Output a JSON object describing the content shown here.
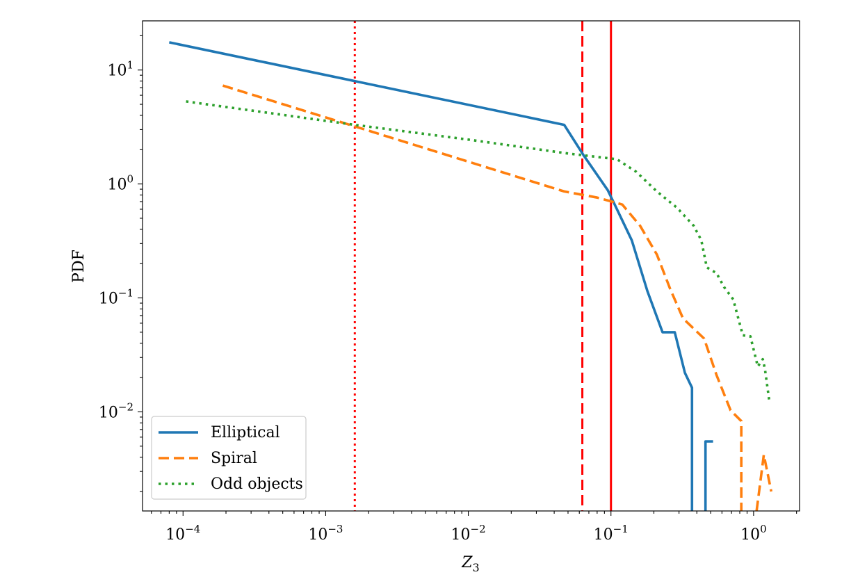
{
  "chart_data": {
    "type": "line",
    "xscale": "log",
    "yscale": "log",
    "xlim": [
      5.2e-05,
      2.1
    ],
    "ylim": [
      0.00135,
      27
    ],
    "xlabel": "Z",
    "xlabel_subscript": "3",
    "ylabel": "PDF",
    "grid": false,
    "legend_position": "lower-left",
    "x_ticks": [
      {
        "value": 0.0001,
        "base": "10",
        "exp": "−4"
      },
      {
        "value": 0.001,
        "base": "10",
        "exp": "−3"
      },
      {
        "value": 0.01,
        "base": "10",
        "exp": "−2"
      },
      {
        "value": 0.1,
        "base": "10",
        "exp": "−1"
      },
      {
        "value": 1,
        "base": "10",
        "exp": "0"
      }
    ],
    "y_ticks": [
      {
        "value": 0.01,
        "base": "10",
        "exp": "−2"
      },
      {
        "value": 0.1,
        "base": "10",
        "exp": "−1"
      },
      {
        "value": 1,
        "base": "10",
        "exp": "0"
      },
      {
        "value": 10,
        "base": "10",
        "exp": "1"
      }
    ],
    "series": [
      {
        "name": "Elliptical",
        "color": "#1f77b4",
        "dash": "solid",
        "segments": [
          [
            [
              8e-05,
              17.5
            ],
            [
              0.047,
              3.3
            ],
            [
              0.064,
              1.8
            ],
            [
              0.095,
              0.88
            ],
            [
              0.105,
              0.68
            ],
            [
              0.14,
              0.32
            ],
            [
              0.18,
              0.115
            ],
            [
              0.23,
              0.05
            ],
            [
              0.28,
              0.05
            ],
            [
              0.33,
              0.022
            ],
            [
              0.37,
              0.0163
            ],
            [
              0.37,
              0.00135
            ]
          ],
          [
            [
              0.46,
              0.00135
            ],
            [
              0.46,
              0.0055
            ],
            [
              0.52,
              0.0055
            ]
          ]
        ]
      },
      {
        "name": "Spiral",
        "color": "#ff7f0e",
        "dash": "dashed",
        "segments": [
          [
            [
              0.00019,
              7.3
            ],
            [
              0.0016,
              3.2
            ],
            [
              0.047,
              0.86
            ],
            [
              0.08,
              0.76
            ],
            [
              0.12,
              0.66
            ],
            [
              0.16,
              0.43
            ],
            [
              0.21,
              0.24
            ],
            [
              0.26,
              0.12
            ],
            [
              0.32,
              0.066
            ],
            [
              0.45,
              0.044
            ],
            [
              0.55,
              0.021
            ],
            [
              0.69,
              0.0103
            ],
            [
              0.82,
              0.0083
            ],
            [
              0.82,
              0.00135
            ]
          ],
          [
            [
              1.05,
              0.00135
            ],
            [
              1.18,
              0.0042
            ],
            [
              1.33,
              0.002
            ]
          ]
        ]
      },
      {
        "name": "Odd objects",
        "color": "#2ca02c",
        "dash": "dotted",
        "segments": [
          [
            [
              0.000105,
              5.3
            ],
            [
              0.0016,
              3.3
            ],
            [
              0.01,
              2.45
            ],
            [
              0.05,
              1.85
            ],
            [
              0.11,
              1.65
            ],
            [
              0.15,
              1.28
            ],
            [
              0.21,
              0.86
            ],
            [
              0.29,
              0.62
            ],
            [
              0.38,
              0.43
            ],
            [
              0.43,
              0.32
            ],
            [
              0.47,
              0.185
            ],
            [
              0.55,
              0.165
            ],
            [
              0.62,
              0.125
            ],
            [
              0.72,
              0.097
            ],
            [
              0.84,
              0.047
            ],
            [
              0.95,
              0.046
            ],
            [
              1.07,
              0.025
            ],
            [
              1.16,
              0.029
            ],
            [
              1.2,
              0.024
            ],
            [
              1.29,
              0.0123
            ]
          ]
        ]
      }
    ],
    "vlines": [
      {
        "x": 0.0016,
        "color": "#ff0000",
        "dash": "dotted"
      },
      {
        "x": 0.063,
        "color": "#ff0000",
        "dash": "dashed"
      },
      {
        "x": 0.1,
        "color": "#ff0000",
        "dash": "solid"
      }
    ]
  }
}
